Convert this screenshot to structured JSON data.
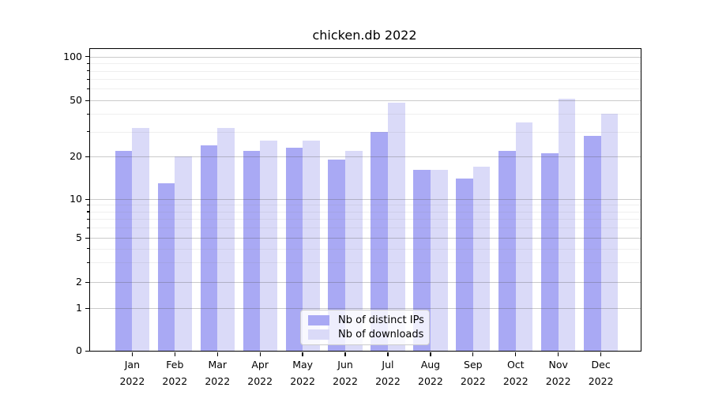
{
  "chart_data": {
    "type": "bar",
    "title": "chicken.db 2022",
    "categories": [
      "Jan",
      "Feb",
      "Mar",
      "Apr",
      "May",
      "Jun",
      "Jul",
      "Aug",
      "Sep",
      "Oct",
      "Nov",
      "Dec"
    ],
    "category_year": "2022",
    "series": [
      {
        "name": "Nb of distinct IPs",
        "color": "#a9a9f4",
        "values": [
          22,
          13,
          24,
          22,
          23,
          19,
          30,
          16,
          14,
          22,
          21,
          28
        ]
      },
      {
        "name": "Nb of downloads",
        "color": "#dadaf8",
        "values": [
          32,
          20,
          32,
          26,
          26,
          22,
          48,
          16,
          17,
          35,
          51,
          40
        ]
      }
    ],
    "xlabel": "",
    "ylabel": "",
    "yscale": "symlog",
    "ylim": [
      0,
      100
    ],
    "yticks": [
      0,
      1,
      2,
      5,
      10,
      20,
      50,
      100
    ],
    "ytick_labels": [
      "0",
      "1",
      "2",
      "5",
      "10",
      "20",
      "50",
      "100"
    ],
    "grid": "on",
    "legend_position": "lower center"
  }
}
